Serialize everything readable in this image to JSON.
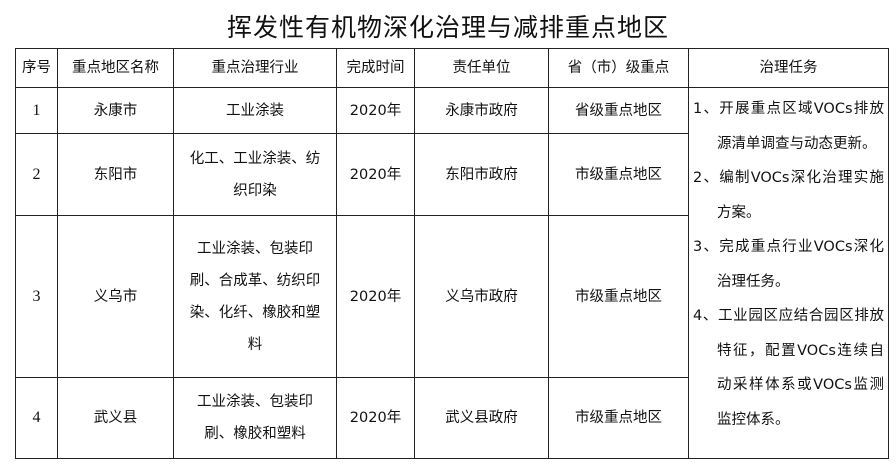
{
  "title": "挥发性有机物深化治理与减排重点地区",
  "headers": [
    "序号",
    "重点地区名称",
    "重点治理行业",
    "完成时间",
    "责任单位",
    "省（市）级重点",
    "治理任务"
  ],
  "rows": [
    {
      "no": "1",
      "region": "永康市",
      "industry": "工业涂装",
      "year": "2020年",
      "unit": "永康市政府",
      "level": "省级重点地区"
    },
    {
      "no": "2",
      "region": "东阳市",
      "industry": "化工、工业涂装、纺织印染",
      "year": "2020年",
      "unit": "东阳市政府",
      "level": "市级重点地区"
    },
    {
      "no": "3",
      "region": "义乌市",
      "industry": "工业涂装、包装印刷、合成革、纺织印染、化纤、橡胶和塑料",
      "year": "2020年",
      "unit": "义乌市政府",
      "level": "市级重点地区"
    },
    {
      "no": "4",
      "region": "武义县",
      "industry": "工业涂装、包装印刷、橡胶和塑料",
      "year": "2020年",
      "unit": "武义县政府",
      "level": "市级重点地区"
    }
  ],
  "tasks": [
    "1、开展重点区域VOCs排放源清单调查与动态更新。",
    "2、编制VOCs深化治理实施方案。",
    "3、完成重点行业VOCs深化治理任务。",
    "4、工业园区应结合园区排放特征，配置VOCs连续自动采样体系或VOCs监测监控体系。"
  ]
}
